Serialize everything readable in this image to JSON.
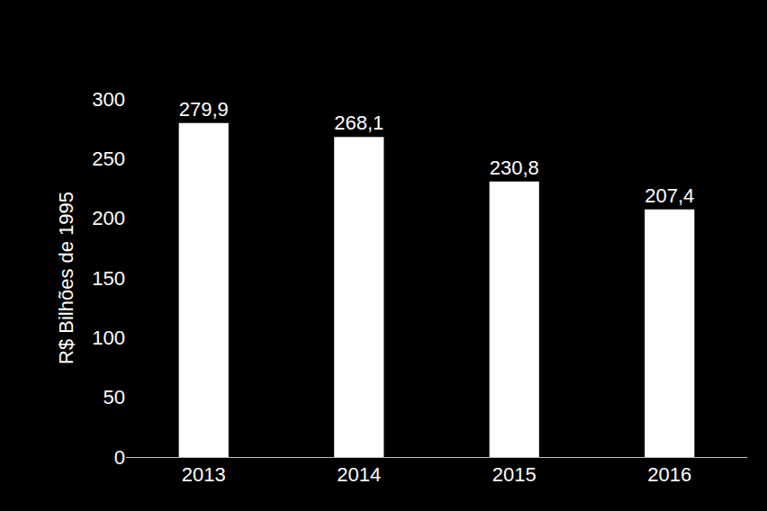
{
  "chart_data": {
    "type": "bar",
    "y_label": "R$ Bilhões de 1995",
    "categories": [
      "2013",
      "2014",
      "2015",
      "2016"
    ],
    "values": [
      279.9,
      268.1,
      230.8,
      207.4
    ],
    "value_labels": [
      "279,9",
      "268,1",
      "230,8",
      "207,4"
    ],
    "color": "#ffffff",
    "ylim": [
      0,
      300
    ],
    "yticks": [
      0,
      50,
      100,
      150,
      200,
      250,
      300
    ],
    "grid": false,
    "data_labels": true
  }
}
